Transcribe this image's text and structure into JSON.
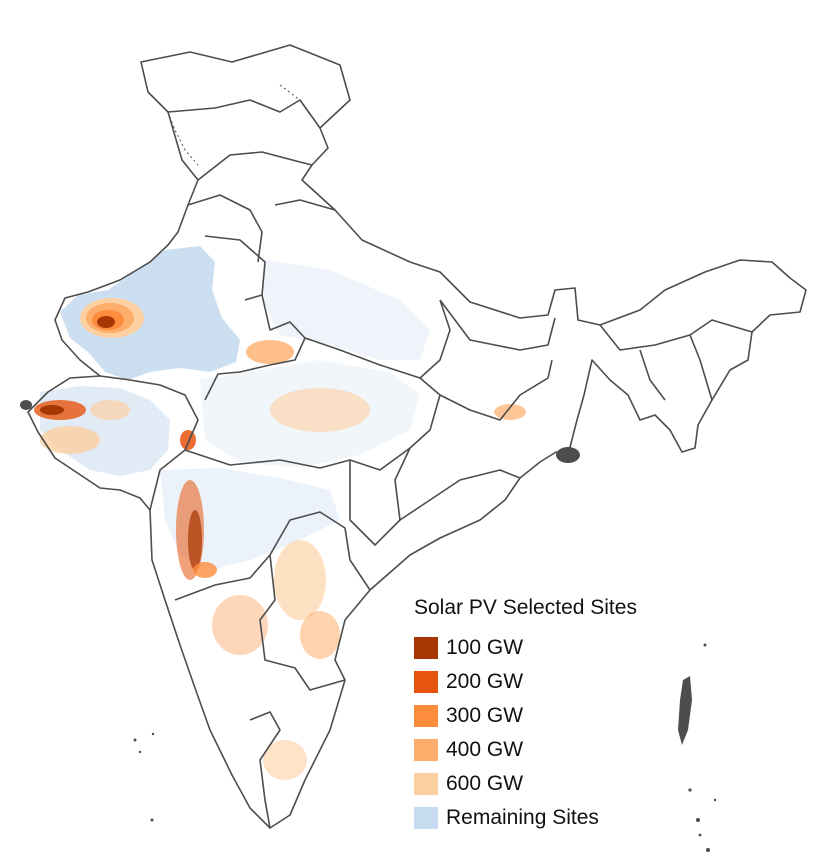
{
  "legend": {
    "title": "Solar PV Selected Sites",
    "items": [
      {
        "label": "100 GW",
        "color": "#a63603"
      },
      {
        "label": "200 GW",
        "color": "#e6550d"
      },
      {
        "label": "300 GW",
        "color": "#fd8d3c"
      },
      {
        "label": "400 GW",
        "color": "#fdae6b"
      },
      {
        "label": "600 GW",
        "color": "#fdd0a2"
      },
      {
        "label": "Remaining Sites",
        "color": "#c6dbef"
      }
    ]
  },
  "colors": {
    "outline": "#4d4d4d",
    "remaining_sites": "#c6dbef",
    "tier_100": "#a63603",
    "tier_200": "#e6550d",
    "tier_300": "#fd8d3c",
    "tier_400": "#fdae6b",
    "tier_600": "#fdd0a2"
  }
}
